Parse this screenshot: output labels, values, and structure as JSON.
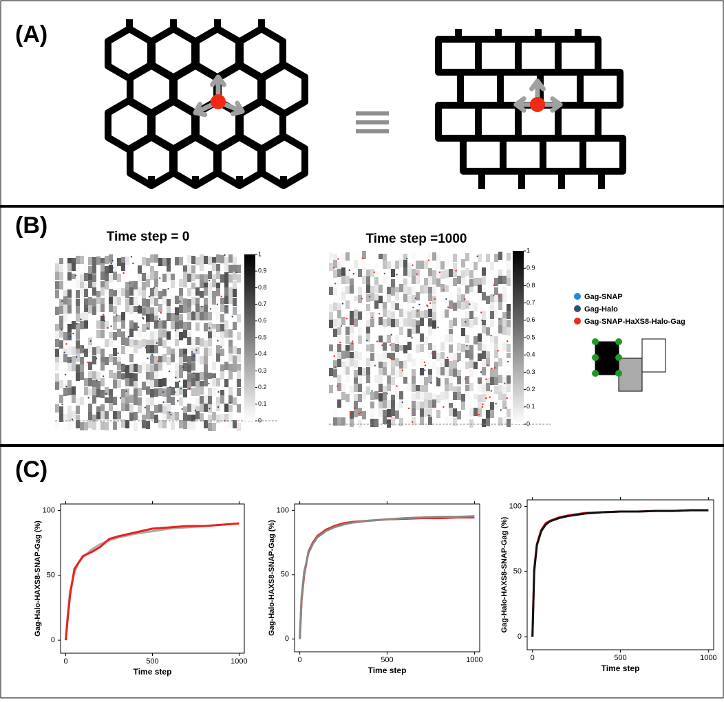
{
  "panels": {
    "a": {
      "label": "(A)"
    },
    "b": {
      "label": "(B)",
      "titles": [
        "Time step = 0",
        "Time step =1000"
      ],
      "colorbar_ticks": [
        0,
        0.1,
        0.2,
        0.3,
        0.4,
        0.5,
        0.6,
        0.7,
        0.8,
        0.9,
        1
      ],
      "legend": [
        {
          "name": "Gag-SNAP",
          "color": "#1e88e5"
        },
        {
          "name": "Gag-Halo",
          "color": "#2b4f7a"
        },
        {
          "name": "Gag-SNAP-HaXS8-Halo-Gag",
          "color": "#ee2a1a"
        }
      ]
    },
    "c": {
      "label": "(C)"
    }
  },
  "chart_data": [
    {
      "type": "line",
      "x_label": "Time step",
      "y_label": "Gag-Halo-HAXS8-SNAP-Gag (%)",
      "x": [
        0,
        10,
        25,
        50,
        75,
        100,
        150,
        200,
        250,
        300,
        400,
        500,
        600,
        700,
        800,
        900,
        1000
      ],
      "series": [
        {
          "color": "#aaaaaa",
          "values": [
            0,
            18,
            38,
            52,
            60,
            64,
            70,
            74,
            77,
            79,
            82,
            84,
            86,
            87,
            88,
            89,
            90
          ]
        },
        {
          "color": "#e8221b",
          "values": [
            0,
            15,
            35,
            55,
            60,
            65,
            68,
            72,
            78,
            80,
            83,
            86,
            87,
            88,
            88,
            89,
            90
          ]
        }
      ],
      "xlim": [
        -30,
        1030
      ],
      "ylim": [
        -10,
        105
      ],
      "xticks": [
        0,
        500,
        1000
      ],
      "yticks": [
        0,
        50,
        100
      ]
    },
    {
      "type": "line",
      "x_label": "Time step",
      "y_label": "Gag-Halo-HAXS8-SNAP-Gag (%)",
      "x": [
        0,
        10,
        25,
        50,
        75,
        100,
        150,
        200,
        250,
        300,
        400,
        500,
        600,
        700,
        800,
        900,
        1000
      ],
      "series": [
        {
          "color": "#e8221b",
          "values": [
            0,
            30,
            50,
            68,
            75,
            80,
            85,
            88,
            90,
            91,
            92,
            93,
            93.5,
            94,
            94,
            94.5,
            94.5
          ]
        },
        {
          "color": "#888888",
          "values": [
            0,
            32,
            52,
            67,
            74,
            79,
            84,
            87,
            89,
            90.5,
            92,
            93,
            94,
            94.5,
            95,
            95,
            95.5
          ]
        }
      ],
      "xlim": [
        -30,
        1030
      ],
      "ylim": [
        -10,
        105
      ],
      "xticks": [
        0,
        500,
        1000
      ],
      "yticks": [
        0,
        50,
        100
      ]
    },
    {
      "type": "line",
      "x_label": "Time step",
      "y_label": "Gag-Halo-HAXS8-SNAP-Gag (%)",
      "x": [
        0,
        10,
        25,
        50,
        75,
        100,
        150,
        200,
        250,
        300,
        400,
        500,
        600,
        700,
        800,
        900,
        1000
      ],
      "series": [
        {
          "color": "#e8221b",
          "values": [
            0,
            52,
            71,
            82,
            87,
            89,
            91.5,
            93,
            94,
            95,
            95.5,
            96,
            96,
            96.5,
            96.5,
            97,
            97
          ]
        },
        {
          "color": "#111111",
          "values": [
            0,
            50,
            70,
            81,
            86,
            88.5,
            91,
            92.5,
            93.5,
            94.5,
            95.5,
            96,
            96,
            96.5,
            96.5,
            97,
            97
          ]
        }
      ],
      "xlim": [
        -30,
        1030
      ],
      "ylim": [
        -10,
        105
      ],
      "xticks": [
        0,
        500,
        1000
      ],
      "yticks": [
        0,
        50,
        100
      ]
    }
  ]
}
